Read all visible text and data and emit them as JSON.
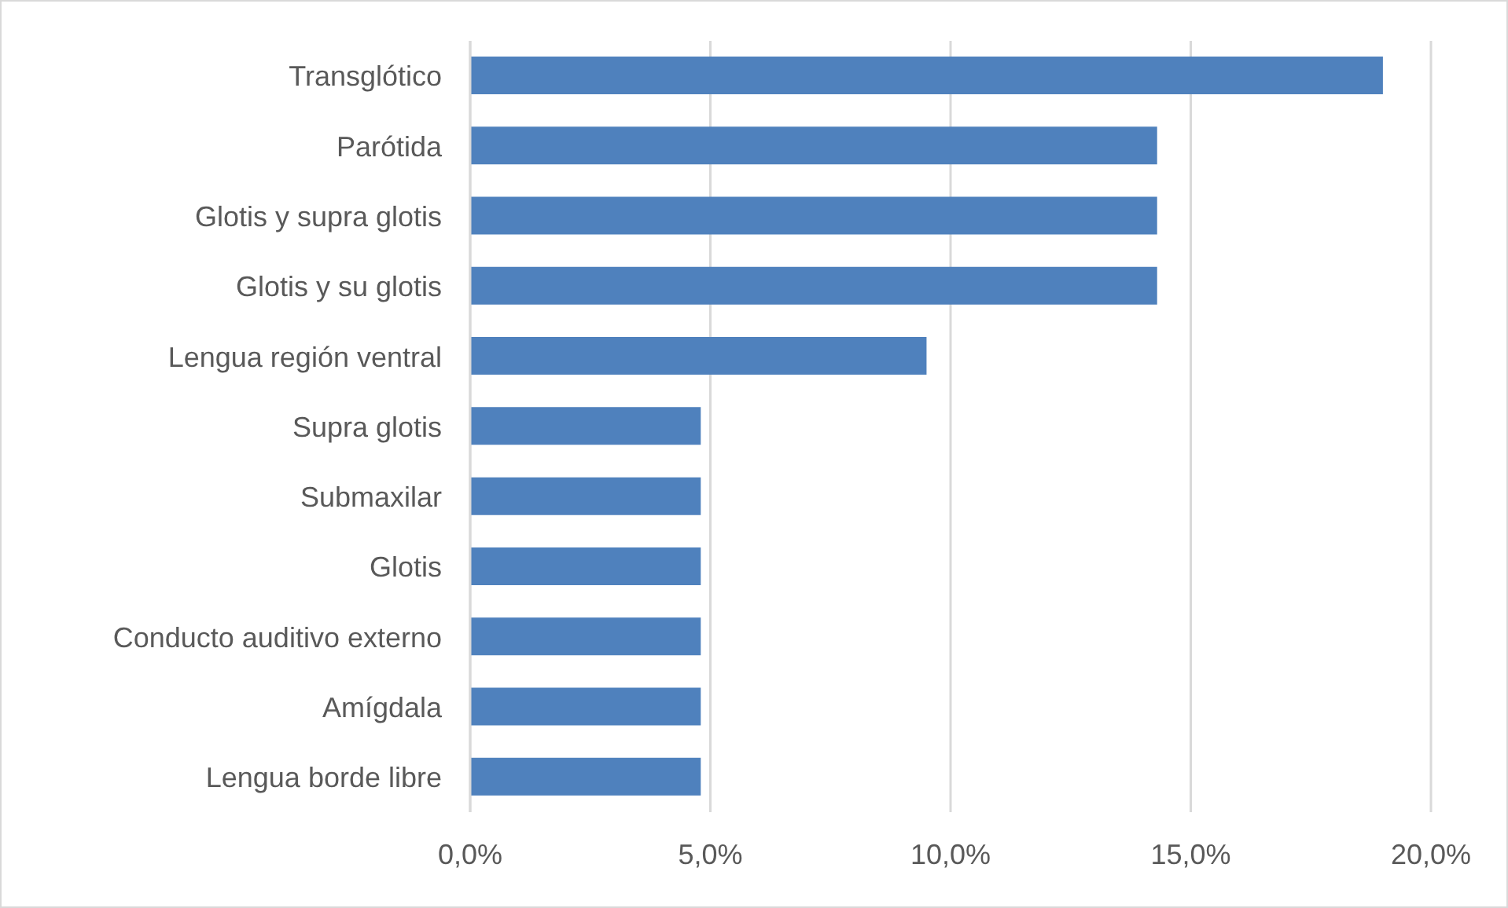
{
  "chart_data": {
    "type": "bar",
    "orientation": "horizontal",
    "categories": [
      "Transglótico",
      "Parótida",
      "Glotis y supra glotis",
      "Glotis y su glotis",
      "Lengua región ventral",
      "Supra glotis",
      "Submaxilar",
      "Glotis",
      "Conducto auditivo externo",
      "Amígdala",
      "Lengua borde libre"
    ],
    "values": [
      19.0,
      14.3,
      14.3,
      14.3,
      9.5,
      4.8,
      4.8,
      4.8,
      4.8,
      4.8,
      4.8
    ],
    "color": "#4f81bd",
    "xlim": [
      0,
      20
    ],
    "xticks": [
      {
        "value": 0,
        "label": "0,0%"
      },
      {
        "value": 5,
        "label": "5,0%"
      },
      {
        "value": 10,
        "label": "10,0%"
      },
      {
        "value": 15,
        "label": "15,0%"
      },
      {
        "value": 20,
        "label": "20,0%"
      }
    ],
    "grid": "x"
  }
}
